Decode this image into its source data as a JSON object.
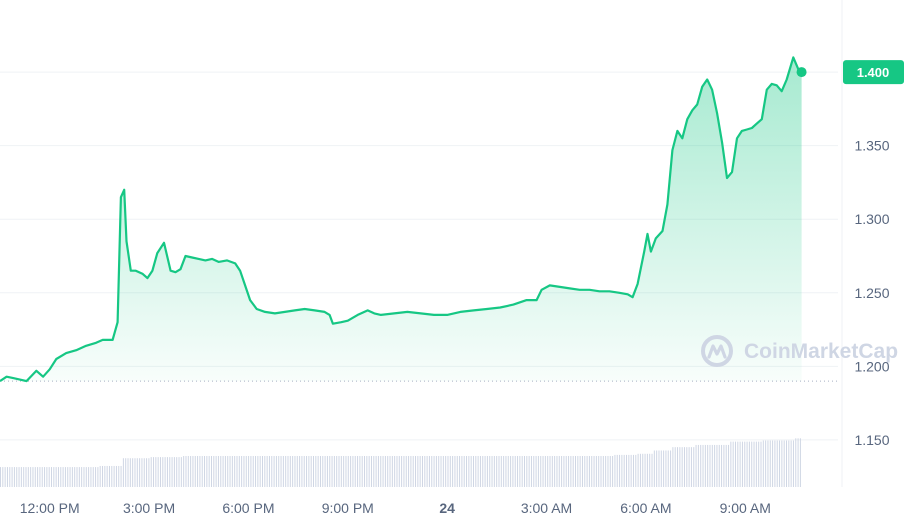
{
  "chart_data": {
    "type": "area",
    "y_ticks": [
      "1.400",
      "1.350",
      "1.300",
      "1.250",
      "1.200",
      "1.150"
    ],
    "y_tick_values": [
      1.4,
      1.35,
      1.3,
      1.25,
      1.2,
      1.15
    ],
    "x_ticks": [
      {
        "label": "12:00 PM",
        "bold": false
      },
      {
        "label": "3:00 PM",
        "bold": false
      },
      {
        "label": "6:00 PM",
        "bold": false
      },
      {
        "label": "9:00 PM",
        "bold": false
      },
      {
        "label": "24",
        "bold": true
      },
      {
        "label": "3:00 AM",
        "bold": false
      },
      {
        "label": "6:00 AM",
        "bold": false
      },
      {
        "label": "9:00 AM",
        "bold": false
      }
    ],
    "x_tick_hours": [
      12,
      15,
      18,
      21,
      24,
      27,
      30,
      33
    ],
    "ylim": [
      1.118,
      1.449
    ],
    "xlim_hours": [
      10.5,
      35.8
    ],
    "reference_line": 1.19,
    "current_price_label": "1.400",
    "grid": true,
    "series": [
      {
        "values": [
          [
            10.5,
            1.19
          ],
          [
            10.7,
            1.193
          ],
          [
            10.9,
            1.192
          ],
          [
            11.1,
            1.191
          ],
          [
            11.3,
            1.19
          ],
          [
            11.6,
            1.197
          ],
          [
            11.8,
            1.193
          ],
          [
            12.0,
            1.198
          ],
          [
            12.2,
            1.205
          ],
          [
            12.5,
            1.209
          ],
          [
            12.8,
            1.211
          ],
          [
            13.1,
            1.214
          ],
          [
            13.4,
            1.216
          ],
          [
            13.6,
            1.218
          ],
          [
            13.9,
            1.218
          ],
          [
            14.05,
            1.23
          ],
          [
            14.15,
            1.315
          ],
          [
            14.25,
            1.32
          ],
          [
            14.32,
            1.285
          ],
          [
            14.45,
            1.265
          ],
          [
            14.6,
            1.265
          ],
          [
            14.8,
            1.263
          ],
          [
            14.95,
            1.26
          ],
          [
            15.1,
            1.265
          ],
          [
            15.25,
            1.277
          ],
          [
            15.45,
            1.284
          ],
          [
            15.65,
            1.265
          ],
          [
            15.8,
            1.264
          ],
          [
            15.95,
            1.266
          ],
          [
            16.1,
            1.275
          ],
          [
            16.3,
            1.274
          ],
          [
            16.5,
            1.273
          ],
          [
            16.7,
            1.272
          ],
          [
            16.9,
            1.273
          ],
          [
            17.1,
            1.271
          ],
          [
            17.35,
            1.272
          ],
          [
            17.6,
            1.27
          ],
          [
            17.75,
            1.265
          ],
          [
            17.9,
            1.255
          ],
          [
            18.05,
            1.245
          ],
          [
            18.25,
            1.239
          ],
          [
            18.5,
            1.237
          ],
          [
            18.8,
            1.236
          ],
          [
            19.1,
            1.237
          ],
          [
            19.4,
            1.238
          ],
          [
            19.7,
            1.239
          ],
          [
            20.0,
            1.238
          ],
          [
            20.3,
            1.237
          ],
          [
            20.45,
            1.235
          ],
          [
            20.55,
            1.229
          ],
          [
            20.8,
            1.23
          ],
          [
            21.0,
            1.231
          ],
          [
            21.3,
            1.235
          ],
          [
            21.6,
            1.238
          ],
          [
            21.8,
            1.236
          ],
          [
            22.0,
            1.235
          ],
          [
            22.4,
            1.236
          ],
          [
            22.8,
            1.237
          ],
          [
            23.2,
            1.236
          ],
          [
            23.6,
            1.235
          ],
          [
            24.0,
            1.235
          ],
          [
            24.4,
            1.237
          ],
          [
            24.8,
            1.238
          ],
          [
            25.2,
            1.239
          ],
          [
            25.6,
            1.24
          ],
          [
            26.0,
            1.242
          ],
          [
            26.4,
            1.245
          ],
          [
            26.7,
            1.245
          ],
          [
            26.85,
            1.252
          ],
          [
            27.1,
            1.255
          ],
          [
            27.4,
            1.254
          ],
          [
            27.7,
            1.253
          ],
          [
            28.0,
            1.252
          ],
          [
            28.3,
            1.252
          ],
          [
            28.6,
            1.251
          ],
          [
            28.9,
            1.251
          ],
          [
            29.2,
            1.25
          ],
          [
            29.45,
            1.249
          ],
          [
            29.6,
            1.247
          ],
          [
            29.75,
            1.256
          ],
          [
            29.95,
            1.278
          ],
          [
            30.05,
            1.29
          ],
          [
            30.15,
            1.278
          ],
          [
            30.3,
            1.287
          ],
          [
            30.5,
            1.292
          ],
          [
            30.65,
            1.31
          ],
          [
            30.8,
            1.347
          ],
          [
            30.95,
            1.36
          ],
          [
            31.1,
            1.355
          ],
          [
            31.25,
            1.368
          ],
          [
            31.4,
            1.374
          ],
          [
            31.55,
            1.378
          ],
          [
            31.7,
            1.39
          ],
          [
            31.85,
            1.395
          ],
          [
            32.0,
            1.388
          ],
          [
            32.15,
            1.372
          ],
          [
            32.3,
            1.352
          ],
          [
            32.45,
            1.328
          ],
          [
            32.6,
            1.332
          ],
          [
            32.75,
            1.355
          ],
          [
            32.9,
            1.36
          ],
          [
            33.05,
            1.361
          ],
          [
            33.2,
            1.362
          ],
          [
            33.35,
            1.365
          ],
          [
            33.5,
            1.368
          ],
          [
            33.65,
            1.388
          ],
          [
            33.8,
            1.392
          ],
          [
            33.95,
            1.391
          ],
          [
            34.1,
            1.387
          ],
          [
            34.25,
            1.395
          ],
          [
            34.45,
            1.41
          ],
          [
            34.6,
            1.402
          ],
          [
            34.7,
            1.4
          ]
        ]
      }
    ],
    "volume": [
      [
        10.5,
        0.18
      ],
      [
        11.5,
        0.18
      ],
      [
        12.5,
        0.18
      ],
      [
        13.5,
        0.19
      ],
      [
        14.05,
        0.19
      ],
      [
        14.15,
        0.26
      ],
      [
        15.0,
        0.27
      ],
      [
        16.0,
        0.28
      ],
      [
        17.0,
        0.28
      ],
      [
        18.0,
        0.28
      ],
      [
        20.0,
        0.28
      ],
      [
        22.0,
        0.28
      ],
      [
        24.0,
        0.28
      ],
      [
        26.0,
        0.28
      ],
      [
        28.0,
        0.28
      ],
      [
        29.0,
        0.29
      ],
      [
        29.7,
        0.3
      ],
      [
        30.2,
        0.33
      ],
      [
        30.8,
        0.36
      ],
      [
        31.5,
        0.38
      ],
      [
        32.5,
        0.41
      ],
      [
        33.5,
        0.42
      ],
      [
        34.5,
        0.44
      ],
      [
        34.7,
        0.45
      ]
    ]
  },
  "watermark": {
    "text": "CoinMarketCap",
    "icon": "coinmarketcap-logo-icon"
  },
  "colors": {
    "line": "#16c784",
    "area_top": "#16c784",
    "grid": "#eff2f5",
    "axis_text": "#58667e",
    "price_tag_bg": "#16c784",
    "volume_bar": "#cfd6e4",
    "reference_dots": "#a6b0c3"
  }
}
